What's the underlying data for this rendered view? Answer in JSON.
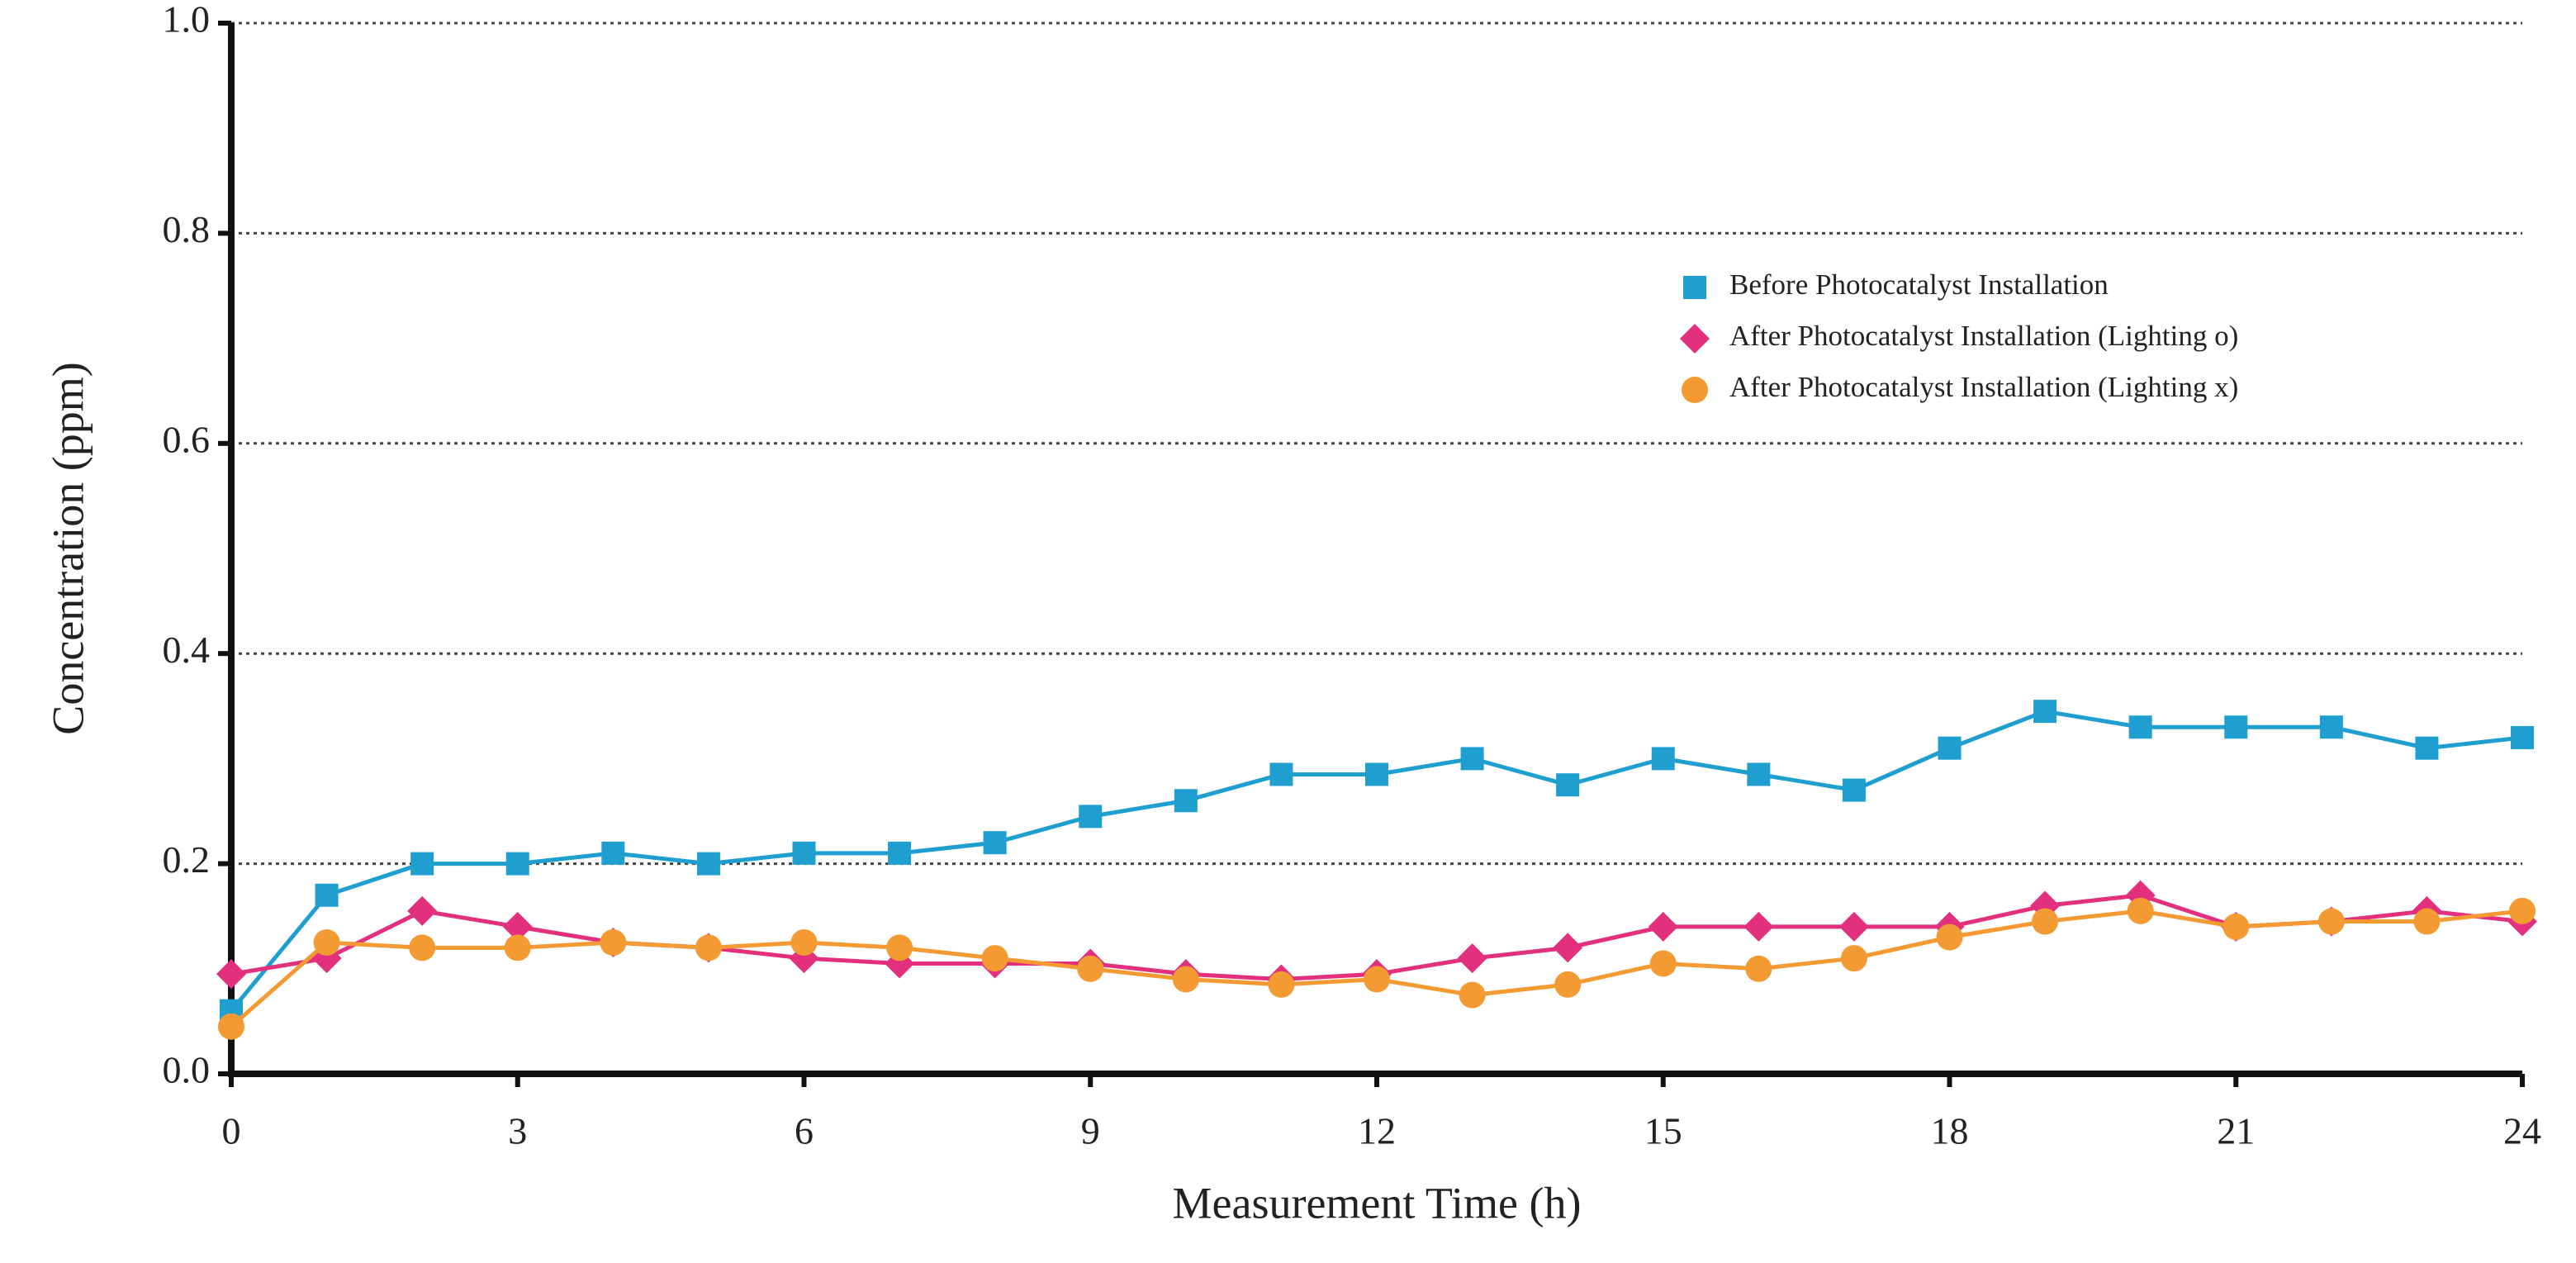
{
  "chart_data": {
    "type": "line",
    "x_label": "Measurement Time (h)",
    "y_label": "Concentration (ppm)",
    "x": [
      0,
      1,
      2,
      3,
      4,
      5,
      6,
      7,
      8,
      9,
      10,
      11,
      12,
      13,
      14,
      15,
      16,
      17,
      18,
      19,
      20,
      21,
      22,
      23,
      24
    ],
    "series": [
      {
        "name": "Before Photocatalyst Installation",
        "color": "#1e9fd0",
        "marker": "square",
        "values": [
          0.06,
          0.17,
          0.2,
          0.2,
          0.21,
          0.2,
          0.21,
          0.21,
          0.22,
          0.245,
          0.26,
          0.285,
          0.285,
          0.3,
          0.275,
          0.3,
          0.285,
          0.27,
          0.31,
          0.345,
          0.33,
          0.33,
          0.33,
          0.31,
          0.32
        ]
      },
      {
        "name": "After Photocatalyst Installation (Lighting o)",
        "color": "#e2307f",
        "marker": "diamond",
        "values": [
          0.095,
          0.11,
          0.155,
          0.14,
          0.125,
          0.12,
          0.11,
          0.105,
          0.105,
          0.105,
          0.095,
          0.09,
          0.095,
          0.11,
          0.12,
          0.14,
          0.14,
          0.14,
          0.14,
          0.16,
          0.17,
          0.14,
          0.145,
          0.155,
          0.145
        ]
      },
      {
        "name": "After Photocatalyst Installation (Lighting x)",
        "color": "#f39a33",
        "marker": "circle",
        "values": [
          0.045,
          0.125,
          0.12,
          0.12,
          0.125,
          0.12,
          0.125,
          0.12,
          0.11,
          0.1,
          0.09,
          0.085,
          0.09,
          0.075,
          0.085,
          0.105,
          0.1,
          0.11,
          0.13,
          0.145,
          0.155,
          0.14,
          0.145,
          0.145,
          0.155
        ]
      }
    ],
    "xlim": [
      0,
      24
    ],
    "xticks": [
      0,
      3,
      6,
      9,
      12,
      15,
      18,
      21,
      24
    ],
    "ylim": [
      0,
      1
    ],
    "yticks": [
      {
        "value": 0,
        "label": "0.0"
      },
      0.2,
      0.4,
      0.6,
      0.8,
      {
        "value": 1,
        "label": "1.0"
      }
    ],
    "grid": true,
    "legend": "upper right"
  }
}
